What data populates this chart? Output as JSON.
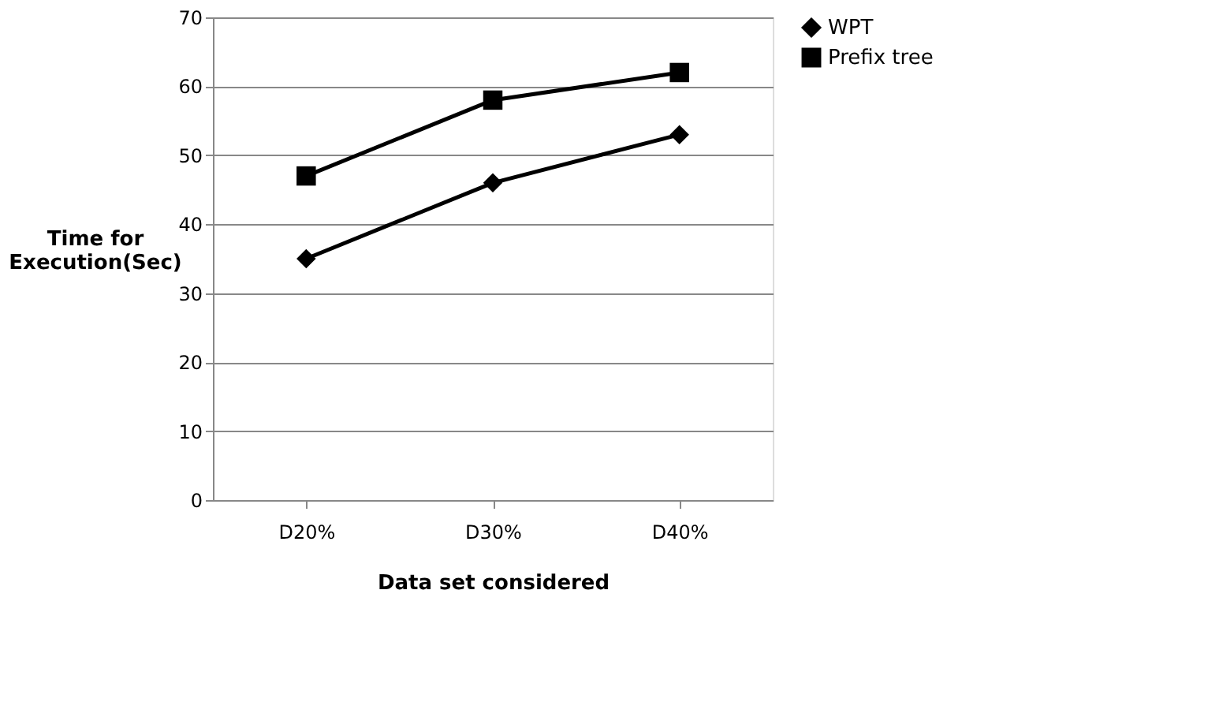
{
  "chart_data": {
    "type": "line",
    "xlabel": "Data set considered",
    "ylabel": "Time for Execution(Sec)",
    "categories": [
      "D20%",
      "D30%",
      "D40%"
    ],
    "series": [
      {
        "name": "WPT",
        "color": "#000000",
        "marker": "diamond",
        "values": [
          35,
          46,
          53
        ]
      },
      {
        "name": "Prefix tree",
        "color": "#000000",
        "marker": "square",
        "values": [
          47,
          58,
          62
        ]
      }
    ],
    "ylim": [
      0,
      70
    ],
    "yticks": [
      0,
      10,
      20,
      30,
      40,
      50,
      60,
      70
    ],
    "grid": "y",
    "legend": "right",
    "line_style": "solid"
  }
}
